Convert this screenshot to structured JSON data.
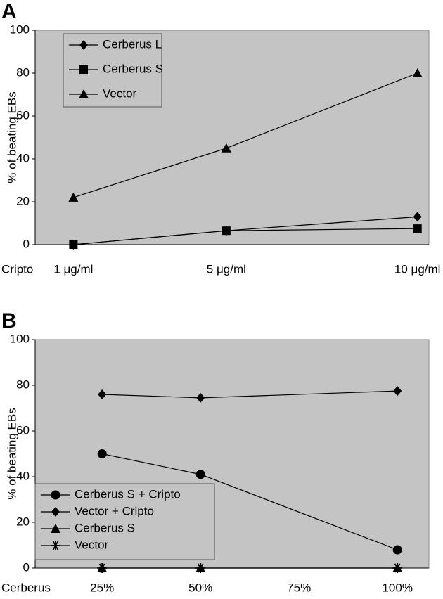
{
  "chart_data": [
    {
      "type": "line",
      "panel": "A",
      "y_label": "% of beating EBs",
      "x_label": "Cripto",
      "x": [
        1,
        5,
        10
      ],
      "xlim": [
        0,
        10.3
      ],
      "xticks": [
        {
          "value": 1,
          "label": "1 μg/ml"
        },
        {
          "value": 5,
          "label": "5 μg/ml"
        },
        {
          "value": 10,
          "label": "10 μg/ml"
        }
      ],
      "ylim": [
        0,
        100
      ],
      "yticks": [
        0,
        20,
        40,
        60,
        80,
        100
      ],
      "legend": "upper left",
      "background": "#c4c4c4",
      "series": [
        {
          "name": "Cerberus L",
          "color": "#000000",
          "marker": "diamond",
          "values": [
            0,
            6.5,
            13
          ]
        },
        {
          "name": "Cerberus S",
          "color": "#000000",
          "marker": "square",
          "values": [
            0,
            6.5,
            7.5
          ]
        },
        {
          "name": "Vector",
          "color": "#000000",
          "marker": "triangle",
          "values": [
            22,
            45,
            80
          ]
        }
      ]
    },
    {
      "type": "line",
      "panel": "B",
      "y_label": "% of beating EBs",
      "x_label": "Cerberus",
      "x": [
        25,
        50,
        100
      ],
      "xlim": [
        8,
        108
      ],
      "xticks": [
        {
          "value": 25,
          "label": "25%"
        },
        {
          "value": 50,
          "label": "50%"
        },
        {
          "value": 75,
          "label": "75%"
        },
        {
          "value": 100,
          "label": "100%"
        }
      ],
      "ylim": [
        0,
        100
      ],
      "yticks": [
        0,
        20,
        40,
        60,
        80,
        100
      ],
      "legend": "lower left",
      "background": "#c4c4c4",
      "series": [
        {
          "name": "Cerberus S + Cripto",
          "color": "#000000",
          "marker": "circle",
          "values": [
            50,
            41,
            8
          ]
        },
        {
          "name": "Vector + Cripto",
          "color": "#000000",
          "marker": "diamond",
          "values": [
            76,
            74.5,
            77.5
          ]
        },
        {
          "name": "Cerberus S",
          "color": "#000000",
          "marker": "triangle",
          "values": [
            0,
            0,
            0
          ]
        },
        {
          "name": "Vector",
          "color": "#000000",
          "marker": "star",
          "values": [
            0,
            0,
            0
          ]
        }
      ]
    }
  ]
}
